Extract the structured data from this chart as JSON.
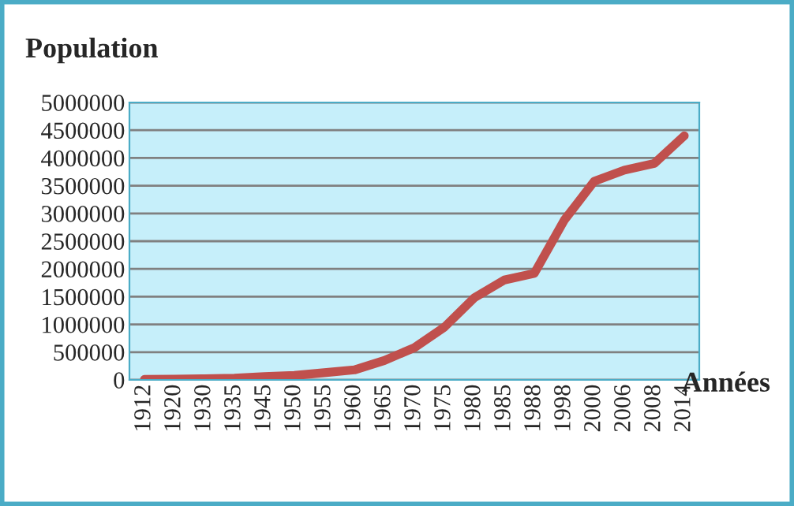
{
  "chart_data": {
    "type": "line",
    "title": "Population",
    "xlabel": "Années",
    "categories": [
      "1912",
      "1920",
      "1930",
      "1935",
      "1945",
      "1950",
      "1955",
      "1960",
      "1965",
      "1970",
      "1975",
      "1980",
      "1985",
      "1988",
      "1998",
      "2000",
      "2006",
      "2008",
      "2014"
    ],
    "series": [
      {
        "color": "#c0504d",
        "values": [
          10000,
          15000,
          20000,
          30000,
          60000,
          80000,
          130000,
          180000,
          350000,
          580000,
          950000,
          1480000,
          1800000,
          1920000,
          2880000,
          3580000,
          3780000,
          3900000,
          4400000
        ]
      }
    ],
    "ylim": [
      0,
      5000000
    ],
    "yticks": [
      0,
      500000,
      1000000,
      1500000,
      2000000,
      2500000,
      3000000,
      3500000,
      4000000,
      4500000,
      5000000
    ],
    "grid": "y",
    "legend": false,
    "marker": "none",
    "line_style": "solid"
  }
}
